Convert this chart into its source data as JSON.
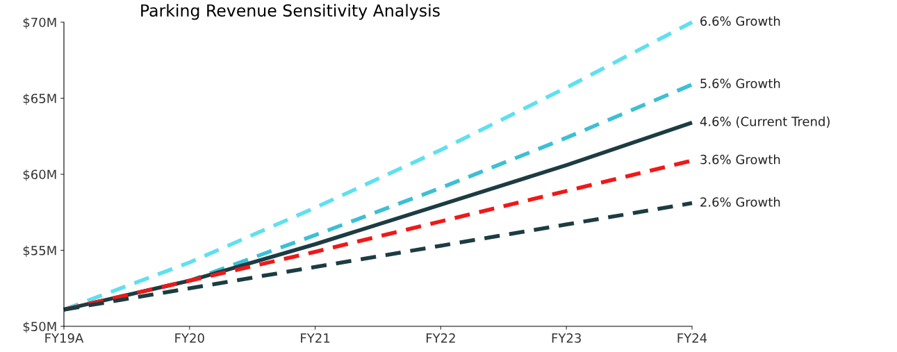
{
  "chart_data": {
    "type": "line",
    "title": "Parking Revenue Sensitivity Analysis",
    "categories": [
      "FY19A",
      "FY20",
      "FY21",
      "FY22",
      "FY23",
      "FY24"
    ],
    "series": [
      {
        "name": "6.6% Growth",
        "color": "#5fe0f0",
        "line_style": "dashed",
        "values": [
          51.1,
          54.2,
          57.8,
          61.6,
          65.7,
          70.0
        ]
      },
      {
        "name": "5.6% Growth",
        "color": "#3dbfd6",
        "line_style": "dashed",
        "values": [
          51.1,
          53.0,
          56.0,
          59.1,
          62.4,
          65.9
        ]
      },
      {
        "name": "4.6% (Current Trend)",
        "color": "#1c3c42",
        "line_style": "solid",
        "values": [
          51.1,
          53.0,
          55.4,
          58.0,
          60.6,
          63.4
        ]
      },
      {
        "name": "3.6% Growth",
        "color": "#f01818",
        "line_style": "dashed",
        "values": [
          51.1,
          53.0,
          54.9,
          56.9,
          58.9,
          60.9
        ]
      },
      {
        "name": "2.6% Growth",
        "color": "#1c3c42",
        "line_style": "dashed",
        "values": [
          51.1,
          52.5,
          53.9,
          55.3,
          56.7,
          58.1
        ]
      }
    ],
    "ylim": [
      50,
      70
    ],
    "yticks": [
      {
        "value": 50,
        "label": "$50M"
      },
      {
        "value": 55,
        "label": "$55M"
      },
      {
        "value": 60,
        "label": "$60M"
      },
      {
        "value": 65,
        "label": "$65M"
      },
      {
        "value": 70,
        "label": "$70M"
      }
    ],
    "grid": false,
    "legend": false,
    "marker": "none"
  }
}
